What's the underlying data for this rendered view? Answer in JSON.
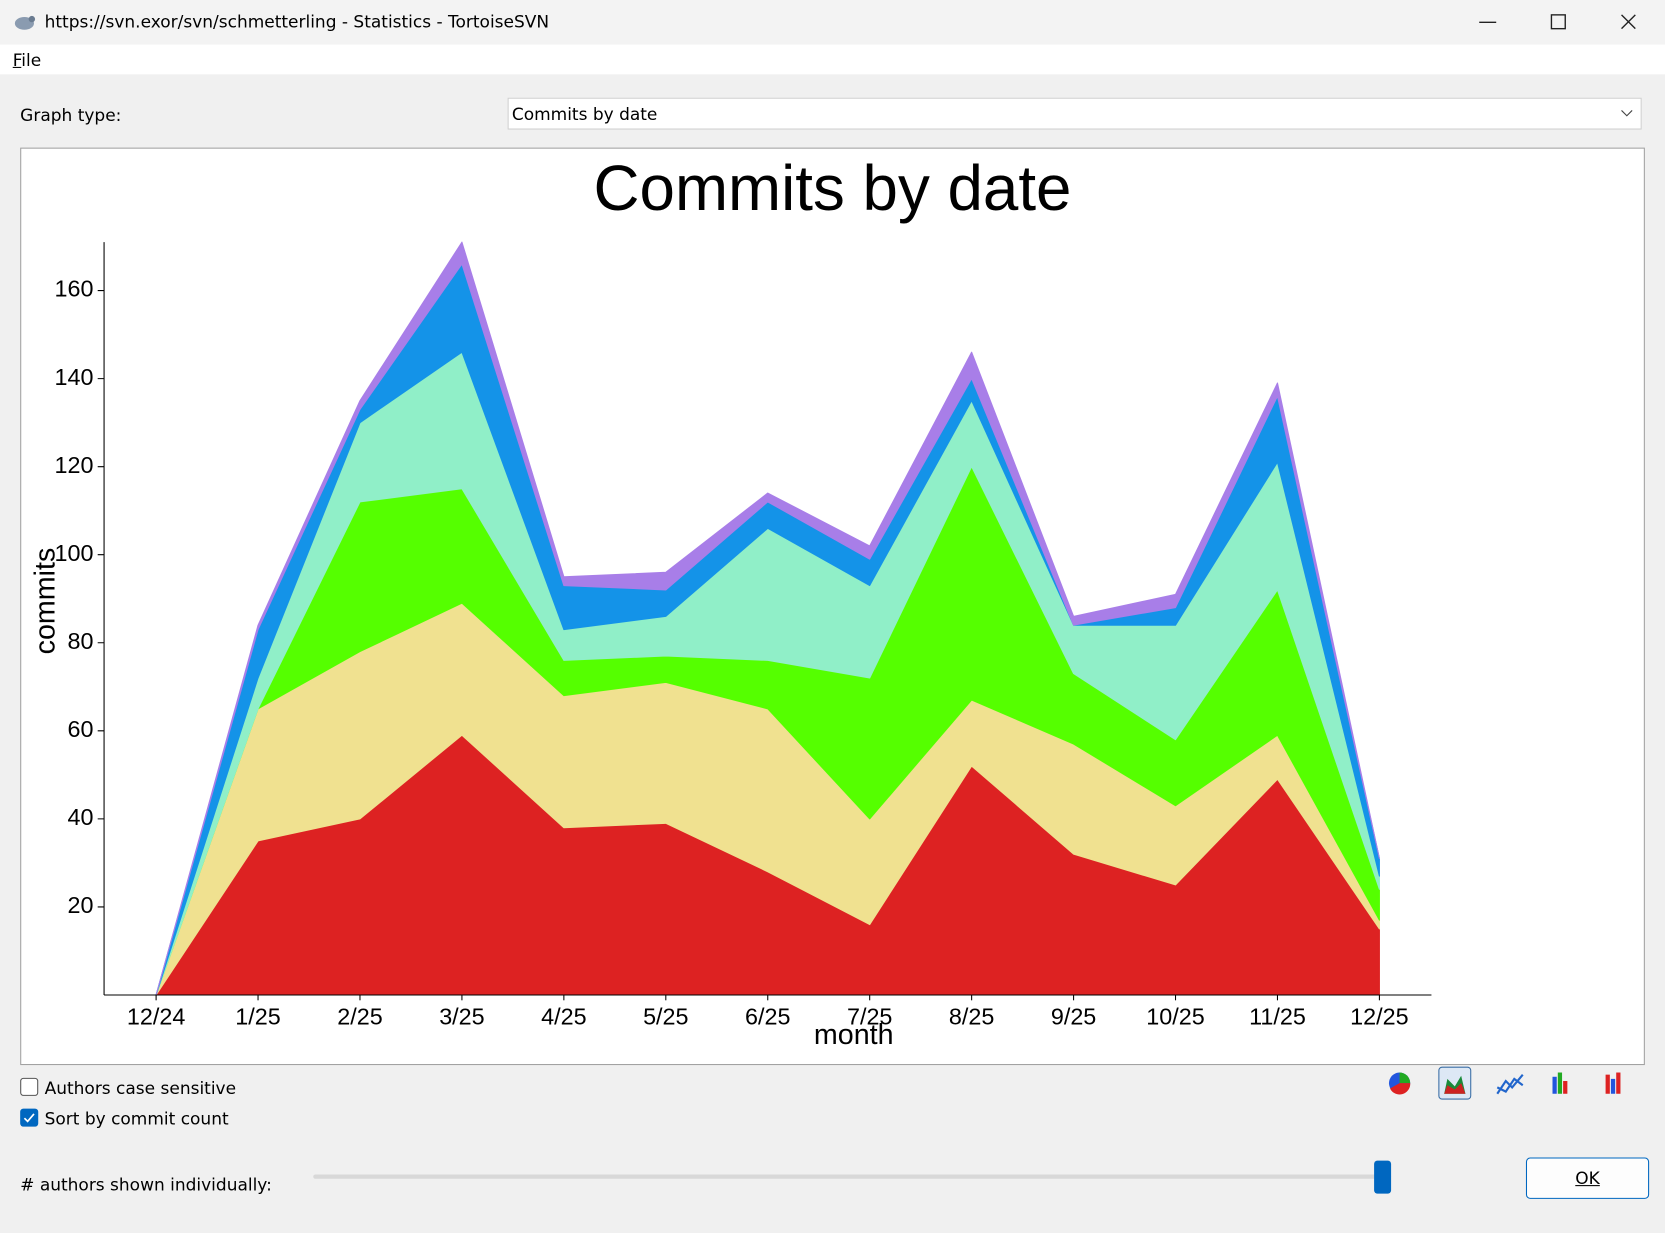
{
  "window": {
    "title": "https://svn.exor/svn/schmetterling - Statistics - TortoiseSVN"
  },
  "menu": [
    "File"
  ],
  "graph_type": {
    "label": "Graph type:",
    "selected": "Commits by date"
  },
  "chart_data": {
    "type": "stacked-area",
    "title": "Commits by date",
    "x_label": "month",
    "y_label": "commits",
    "categories": [
      "12/24",
      "1/25",
      "2/25",
      "3/25",
      "4/25",
      "5/25",
      "6/25",
      "7/25",
      "8/25",
      "9/25",
      "10/25",
      "11/25",
      "12/25"
    ],
    "series": [
      {
        "color": "#dd2222",
        "values": [
          0,
          35,
          40,
          59,
          38,
          39,
          28,
          16,
          52,
          32,
          25,
          49,
          15
        ]
      },
      {
        "color": "#f0e190",
        "values": [
          0,
          30,
          38,
          30,
          30,
          32,
          37,
          24,
          15,
          25,
          18,
          10,
          2
        ]
      },
      {
        "color": "#55ff00",
        "values": [
          0,
          0,
          34,
          26,
          8,
          6,
          11,
          32,
          53,
          16,
          15,
          33,
          7
        ]
      },
      {
        "color": "#90efc8",
        "values": [
          0,
          7,
          18,
          31,
          7,
          9,
          30,
          21,
          15,
          11,
          26,
          29,
          3
        ]
      },
      {
        "color": "#1493e8",
        "values": [
          0,
          11,
          3,
          20,
          10,
          6,
          6,
          6,
          5,
          0,
          4,
          15,
          4
        ]
      },
      {
        "color": "#a87ee8",
        "values": [
          0,
          1,
          2,
          5,
          2,
          4,
          2,
          3,
          6,
          2,
          3,
          3,
          0
        ]
      }
    ],
    "ylim": [
      0,
      171
    ],
    "yticks": [
      20,
      40,
      60,
      80,
      100,
      120,
      140,
      160
    ]
  },
  "options": {
    "authors_case_sensitive": {
      "label": "Authors case sensitive",
      "checked": false
    },
    "sort_by_commit_count": {
      "label": "Sort by commit count",
      "checked": true
    }
  },
  "authors_slider": {
    "label": "# authors shown individually:"
  },
  "buttons": {
    "ok": "OK"
  }
}
